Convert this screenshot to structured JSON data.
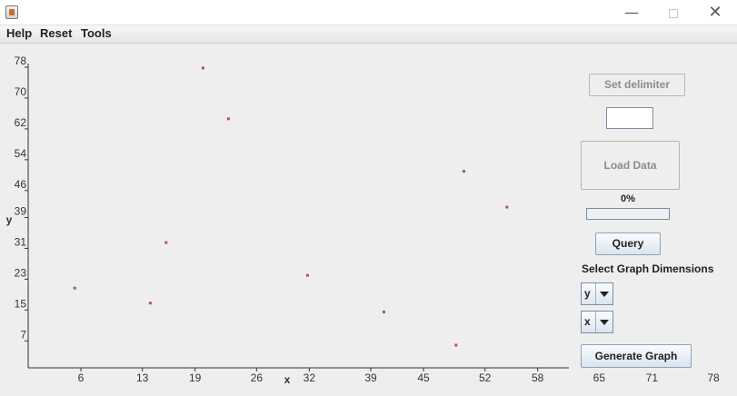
{
  "menu": {
    "help": "Help",
    "reset": "Reset",
    "tools": "Tools"
  },
  "window_controls": {
    "minimize": "—",
    "close": "✕"
  },
  "controls": {
    "set_delimiter": "Set delimiter",
    "delimiter_value": "",
    "load_data": "Load Data",
    "progress_text": "0%",
    "progress": 0,
    "query": "Query",
    "dimensions_label": "Select Graph Dimensions",
    "dim1": "y",
    "dim2": "x",
    "generate": "Generate Graph"
  },
  "chart_data": {
    "type": "scatter",
    "xlabel": "x",
    "ylabel": "y",
    "xlim": [
      0,
      78
    ],
    "ylim": [
      0,
      78
    ],
    "xticks": [
      6,
      13,
      19,
      26,
      32,
      39,
      45,
      52,
      58,
      65,
      71,
      78
    ],
    "yticks": [
      7,
      15,
      23,
      31,
      39,
      46,
      54,
      62,
      70,
      78
    ],
    "marker_color": "#b05060",
    "points": [
      {
        "x": 5.3,
        "y": 20.7
      },
      {
        "x": 13.9,
        "y": 16.8
      },
      {
        "x": 15.7,
        "y": 32.5
      },
      {
        "x": 19.9,
        "y": 77.8
      },
      {
        "x": 22.8,
        "y": 64.6
      },
      {
        "x": 31.8,
        "y": 24.0
      },
      {
        "x": 40.5,
        "y": 14.5
      },
      {
        "x": 48.7,
        "y": 5.9
      },
      {
        "x": 49.6,
        "y": 51.0
      },
      {
        "x": 54.5,
        "y": 41.7
      }
    ]
  }
}
